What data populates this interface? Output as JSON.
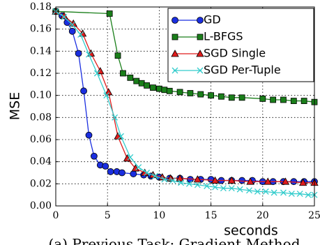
{
  "chart_data": {
    "type": "line",
    "xlabel": "seconds",
    "ylabel": "MSE",
    "caption": "(a) Previous Task: Gradient Method",
    "xlim": [
      0,
      25
    ],
    "ylim": [
      0,
      0.18
    ],
    "xticks": [
      0,
      5,
      10,
      15,
      20,
      25
    ],
    "yticks": [
      {
        "value": 0,
        "label": "0.00"
      },
      0.02,
      0.04,
      0.06,
      0.08,
      {
        "value": 0.1,
        "label": "0.10"
      },
      0.12,
      0.14,
      0.16,
      0.18
    ],
    "grid": true,
    "legend": "upper right",
    "series": [
      {
        "name": "GD",
        "color": "#1a2ee0",
        "marker": "circle",
        "x": [
          0,
          0.6,
          1.1,
          1.6,
          2.2,
          2.7,
          3.2,
          3.7,
          4.3,
          4.8,
          5.3,
          5.9,
          6.4,
          7.5,
          8.5,
          9.2,
          10,
          11,
          12,
          13,
          14,
          15,
          16,
          17,
          18,
          19,
          20,
          21,
          22,
          23,
          24,
          25
        ],
        "values": [
          0.176,
          0.172,
          0.166,
          0.158,
          0.138,
          0.104,
          0.064,
          0.045,
          0.037,
          0.036,
          0.031,
          0.031,
          0.03,
          0.029,
          0.028,
          0.027,
          0.026,
          0.025,
          0.025,
          0.024,
          0.024,
          0.024,
          0.023,
          0.023,
          0.023,
          0.023,
          0.022,
          0.022,
          0.022,
          0.022,
          0.022,
          0.022
        ]
      },
      {
        "name": "L-BFGS",
        "color": "#1a7f1a",
        "marker": "square",
        "x": [
          0,
          5.2,
          6,
          6.5,
          7.2,
          7.8,
          8.3,
          8.8,
          9.4,
          10,
          10.5,
          11,
          12,
          13,
          14,
          15,
          16,
          17,
          18,
          20,
          21,
          22,
          23,
          24,
          25
        ],
        "values": [
          0.176,
          0.174,
          0.136,
          0.12,
          0.116,
          0.113,
          0.111,
          0.109,
          0.107,
          0.106,
          0.105,
          0.104,
          0.103,
          0.102,
          0.101,
          0.1,
          0.099,
          0.098,
          0.098,
          0.097,
          0.096,
          0.096,
          0.095,
          0.095,
          0.094
        ]
      },
      {
        "name": "SGD Single",
        "color": "#e01c1c",
        "marker": "triangle",
        "x": [
          0,
          0.8,
          1.7,
          2.6,
          3.4,
          4.3,
          5.1,
          6,
          6.9,
          7.7,
          8.6,
          9.4,
          10.3,
          11.1,
          12,
          13.7,
          15.4,
          17,
          18.8,
          20.5,
          22.2,
          23.9,
          25
        ],
        "values": [
          0.176,
          0.172,
          0.165,
          0.156,
          0.138,
          0.122,
          0.103,
          0.063,
          0.043,
          0.034,
          0.03,
          0.028,
          0.026,
          0.025,
          0.025,
          0.024,
          0.023,
          0.023,
          0.022,
          0.022,
          0.022,
          0.021,
          0.021
        ]
      },
      {
        "name": "SGD Per-Tuple",
        "color": "#33cccc",
        "marker": "x",
        "x": [
          0,
          0.8,
          1.6,
          2.4,
          3.2,
          4,
          4.9,
          5.7,
          6.3,
          7.2,
          8,
          8.8,
          9.6,
          10.5,
          11.3,
          12.1,
          12.9,
          13.7,
          14.6,
          15.4,
          16.2,
          17,
          17.8,
          18.7,
          19.5,
          20.3,
          21.1,
          22,
          22.8,
          23.6,
          24.4,
          25
        ],
        "values": [
          0.176,
          0.171,
          0.164,
          0.155,
          0.137,
          0.12,
          0.1,
          0.08,
          0.063,
          0.044,
          0.035,
          0.03,
          0.027,
          0.024,
          0.023,
          0.021,
          0.02,
          0.019,
          0.018,
          0.017,
          0.016,
          0.016,
          0.015,
          0.014,
          0.013,
          0.013,
          0.012,
          0.012,
          0.011,
          0.011,
          0.01,
          0.01
        ]
      }
    ]
  }
}
